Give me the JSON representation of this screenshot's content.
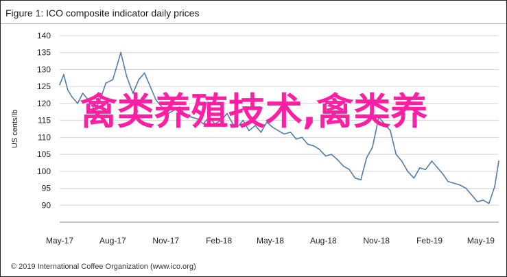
{
  "figure": {
    "title": "Figure 1: ICO composite indicator daily prices",
    "footer": "© 2019 International Coffee Organization (www.ico.org)"
  },
  "watermark": {
    "text": "禽类养殖技术,禽类养",
    "color": "#ff1fa5"
  },
  "chart_data": {
    "type": "line",
    "title": "Figure 1: ICO composite indicator daily prices",
    "xlabel": "",
    "ylabel": "US cents/lb",
    "ylim": [
      85,
      140
    ],
    "yticks": [
      90,
      95,
      100,
      105,
      110,
      115,
      120,
      125,
      130,
      135,
      140
    ],
    "grid": "horizontal",
    "legend": "none",
    "line_color": "#4f7cae",
    "x_tick_labels": [
      "May-17",
      "Aug-17",
      "Nov-17",
      "Feb-18",
      "May-18",
      "Aug-18",
      "Nov-18",
      "Feb-19",
      "May-19"
    ],
    "series": [
      {
        "name": "",
        "x": [
          "2017-05-01",
          "2017-05-08",
          "2017-05-15",
          "2017-05-22",
          "2017-06-01",
          "2017-06-10",
          "2017-06-20",
          "2017-07-01",
          "2017-07-10",
          "2017-07-20",
          "2017-08-01",
          "2017-08-08",
          "2017-08-15",
          "2017-08-25",
          "2017-09-05",
          "2017-09-15",
          "2017-09-25",
          "2017-10-05",
          "2017-10-15",
          "2017-10-25",
          "2017-11-05",
          "2017-11-15",
          "2017-11-25",
          "2017-12-05",
          "2017-12-15",
          "2017-12-25",
          "2018-01-05",
          "2018-01-15",
          "2018-01-25",
          "2018-02-05",
          "2018-02-15",
          "2018-02-25",
          "2018-03-05",
          "2018-03-15",
          "2018-03-25",
          "2018-04-05",
          "2018-04-15",
          "2018-04-25",
          "2018-05-05",
          "2018-05-15",
          "2018-05-25",
          "2018-06-05",
          "2018-06-15",
          "2018-06-25",
          "2018-07-05",
          "2018-07-15",
          "2018-07-25",
          "2018-08-05",
          "2018-08-15",
          "2018-08-25",
          "2018-09-05",
          "2018-09-15",
          "2018-09-25",
          "2018-10-05",
          "2018-10-15",
          "2018-10-25",
          "2018-11-05",
          "2018-11-15",
          "2018-11-25",
          "2018-12-05",
          "2018-12-15",
          "2018-12-25",
          "2019-01-05",
          "2019-01-15",
          "2019-01-25",
          "2019-02-05",
          "2019-02-15",
          "2019-02-25",
          "2019-03-05",
          "2019-03-15",
          "2019-03-25",
          "2019-04-05",
          "2019-04-15",
          "2019-04-25",
          "2019-05-05",
          "2019-05-15",
          "2019-05-25",
          "2019-06-01"
        ],
        "values": [
          125.5,
          128.5,
          124,
          122,
          120,
          123,
          121,
          118,
          121,
          126,
          127,
          131,
          135,
          128,
          123,
          127,
          129,
          125,
          121,
          119,
          117,
          118,
          119,
          116.5,
          116,
          115.5,
          114,
          116,
          114,
          115,
          117,
          114,
          113,
          115,
          112,
          113.5,
          111.5,
          114.5,
          113,
          112,
          111,
          111.5,
          109.5,
          110,
          108,
          107.5,
          106.5,
          104.5,
          105,
          103.5,
          101.5,
          100.5,
          98,
          97.5,
          104,
          107,
          116,
          114,
          112,
          105,
          103,
          100,
          98,
          101,
          100.5,
          103,
          101,
          99,
          97,
          96.5,
          96,
          95,
          93,
          91,
          91.5,
          90.5,
          95.5,
          103
        ]
      }
    ]
  }
}
